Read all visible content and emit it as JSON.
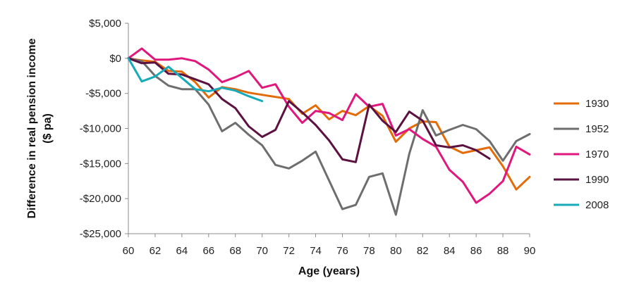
{
  "chart_data": {
    "type": "line",
    "xlabel": "Age (years)",
    "ylabel_lines": [
      "Difference in real pension income",
      "($ pa)"
    ],
    "xlim": [
      60,
      90
    ],
    "ylim": [
      -25000,
      5000
    ],
    "x_ticks": [
      60,
      62,
      64,
      66,
      68,
      70,
      72,
      74,
      76,
      78,
      80,
      82,
      84,
      86,
      88,
      90
    ],
    "y_ticks": [
      5000,
      0,
      -5000,
      -10000,
      -15000,
      -20000,
      -25000
    ],
    "y_tick_labels": [
      "$5,000",
      "$0",
      "-$5,000",
      "-$10,000",
      "-$15,000",
      "-$20,000",
      "-$25,000"
    ],
    "grid": false,
    "legend_position": "right",
    "series": [
      {
        "name": "1930",
        "color": "#E36C09",
        "x": [
          60,
          61,
          62,
          63,
          64,
          65,
          66,
          67,
          68,
          69,
          70,
          71,
          72,
          73,
          74,
          75,
          76,
          77,
          78,
          79,
          80,
          81,
          82,
          83,
          84,
          85,
          86,
          87,
          88,
          89,
          90
        ],
        "values": [
          0,
          -300,
          -500,
          -1800,
          -1900,
          -3400,
          -5600,
          -4100,
          -4400,
          -4900,
          -5200,
          -5500,
          -5800,
          -7900,
          -6700,
          -8700,
          -7500,
          -8100,
          -6800,
          -8200,
          -11900,
          -10000,
          -9000,
          -9100,
          -12600,
          -13500,
          -13100,
          -12700,
          -15400,
          -18700,
          -16900
        ]
      },
      {
        "name": "1952",
        "color": "#6E6E6E",
        "x": [
          60,
          61,
          62,
          63,
          64,
          65,
          66,
          67,
          68,
          69,
          70,
          71,
          72,
          73,
          74,
          75,
          76,
          77,
          78,
          79,
          80,
          81,
          82,
          83,
          84,
          85,
          86,
          87,
          88,
          89,
          90
        ],
        "values": [
          0,
          -400,
          -2500,
          -3900,
          -4400,
          -4400,
          -6600,
          -10400,
          -9200,
          -10900,
          -12400,
          -15200,
          -15700,
          -14600,
          -13300,
          -17400,
          -21500,
          -20900,
          -16900,
          -16400,
          -22300,
          -13600,
          -7400,
          -11000,
          -10200,
          -9500,
          -10100,
          -11800,
          -14600,
          -11800,
          -10800
        ]
      },
      {
        "name": "1970",
        "color": "#E0177C",
        "x": [
          60,
          61,
          62,
          63,
          64,
          65,
          66,
          67,
          68,
          69,
          70,
          71,
          72,
          73,
          74,
          75,
          76,
          77,
          78,
          79,
          80,
          81,
          82,
          83,
          84,
          85,
          86,
          87,
          88,
          89,
          90
        ],
        "values": [
          0,
          1400,
          -200,
          -200,
          0,
          -400,
          -1600,
          -3400,
          -2700,
          -1800,
          -4200,
          -3700,
          -6900,
          -9200,
          -7500,
          -7800,
          -8800,
          -5100,
          -6900,
          -6500,
          -11000,
          -10100,
          -11500,
          -12600,
          -15900,
          -17600,
          -20600,
          -19300,
          -17500,
          -12600,
          -13700
        ]
      },
      {
        "name": "1990",
        "color": "#5C1240",
        "x": [
          60,
          61,
          62,
          63,
          64,
          65,
          66,
          67,
          68,
          69,
          70,
          71,
          72,
          73,
          74,
          75,
          76,
          77,
          78,
          79,
          80,
          81,
          82,
          83,
          84,
          85,
          86,
          87
        ],
        "values": [
          0,
          -700,
          -600,
          -2200,
          -2300,
          -3000,
          -3700,
          -5800,
          -7100,
          -9700,
          -11200,
          -10200,
          -6100,
          -7700,
          -9500,
          -11700,
          -14400,
          -14800,
          -6600,
          -8900,
          -10500,
          -7600,
          -8900,
          -12400,
          -12700,
          -12400,
          -13100,
          -14300
        ]
      },
      {
        "name": "2008",
        "color": "#17AAB8",
        "x": [
          60,
          61,
          62,
          63,
          64,
          65,
          66,
          67,
          68,
          69,
          70
        ],
        "values": [
          0,
          -3300,
          -2600,
          -1200,
          -2800,
          -4400,
          -4700,
          -4200,
          -4600,
          -5400,
          -6100
        ]
      }
    ]
  }
}
